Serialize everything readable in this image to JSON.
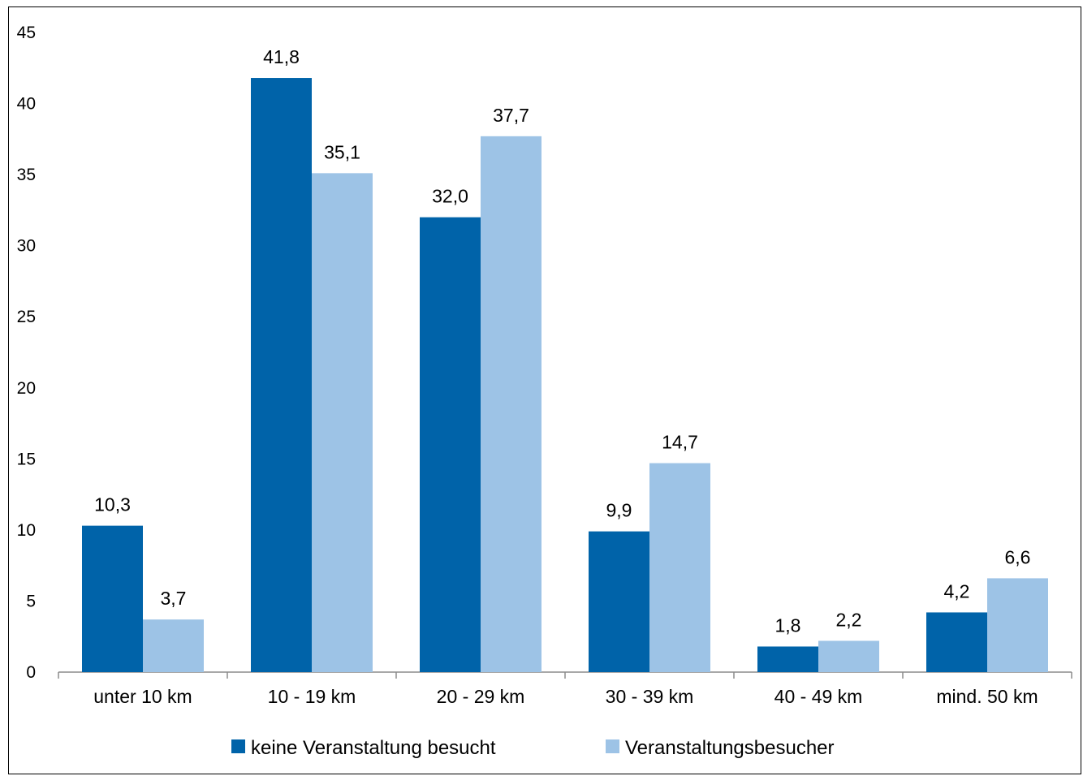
{
  "chart_data": {
    "type": "bar",
    "title": "",
    "xlabel": "",
    "ylabel": "",
    "ylim": [
      0,
      45
    ],
    "yticks": [
      0,
      5,
      10,
      15,
      20,
      25,
      30,
      35,
      40,
      45
    ],
    "grid": false,
    "legend_position": "bottom",
    "categories": [
      "unter 10 km",
      "10 - 19 km",
      "20 - 29 km",
      "30 - 39 km",
      "40 - 49 km",
      "mind. 50 km"
    ],
    "series": [
      {
        "name": "keine Veranstaltung besucht",
        "color": "#0063A9",
        "values": [
          10.3,
          41.8,
          32.0,
          9.9,
          1.8,
          4.2
        ],
        "labels": [
          "10,3",
          "41,8",
          "32,0",
          "9,9",
          "1,8",
          "4,2"
        ]
      },
      {
        "name": "Veranstaltungsbesucher",
        "color": "#9DC3E6",
        "values": [
          3.7,
          35.1,
          37.7,
          14.7,
          2.2,
          6.6
        ],
        "labels": [
          "3,7",
          "35,1",
          "37,7",
          "14,7",
          "2,2",
          "6,6"
        ]
      }
    ]
  }
}
